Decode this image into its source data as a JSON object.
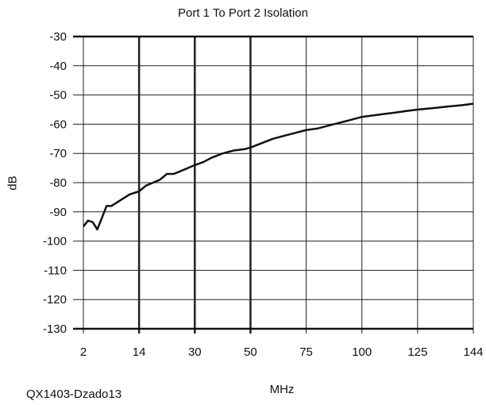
{
  "chart_data": {
    "type": "line",
    "title": "Port 1 To Port 2 Isolation",
    "xlabel": "MHz",
    "ylabel": "dB",
    "caption": "QX1403-Dzado13",
    "ylim": [
      -130,
      -30
    ],
    "yticks": [
      -30,
      -40,
      -50,
      -60,
      -70,
      -80,
      -90,
      -100,
      -110,
      -120,
      -130
    ],
    "xticks": [
      2,
      14,
      30,
      50,
      75,
      100,
      125,
      144
    ],
    "grid": true,
    "legend": "none",
    "series_color": "#111111",
    "series": [
      {
        "x": [
          2,
          3,
          4,
          5,
          6,
          7,
          8,
          10,
          12,
          14,
          16,
          18,
          20,
          22,
          24,
          26,
          28,
          30,
          33,
          36,
          40,
          44,
          48,
          50,
          55,
          60,
          65,
          70,
          75,
          80,
          85,
          90,
          95,
          100,
          105,
          110,
          115,
          120,
          125,
          130,
          135,
          140,
          144
        ],
        "y": [
          -95,
          -93,
          -93.5,
          -96,
          -92,
          -88,
          -88,
          -86,
          -84,
          -83,
          -81,
          -80,
          -79,
          -77,
          -77,
          -76,
          -75,
          -74,
          -73,
          -71.5,
          -70,
          -69,
          -68.5,
          -68,
          -66.5,
          -65,
          -64,
          -63,
          -62,
          -61.5,
          -60.5,
          -59.5,
          -58.5,
          -57.5,
          -57,
          -56.5,
          -56,
          -55.5,
          -55,
          -54.5,
          -54,
          -53.5,
          -53
        ]
      }
    ]
  }
}
